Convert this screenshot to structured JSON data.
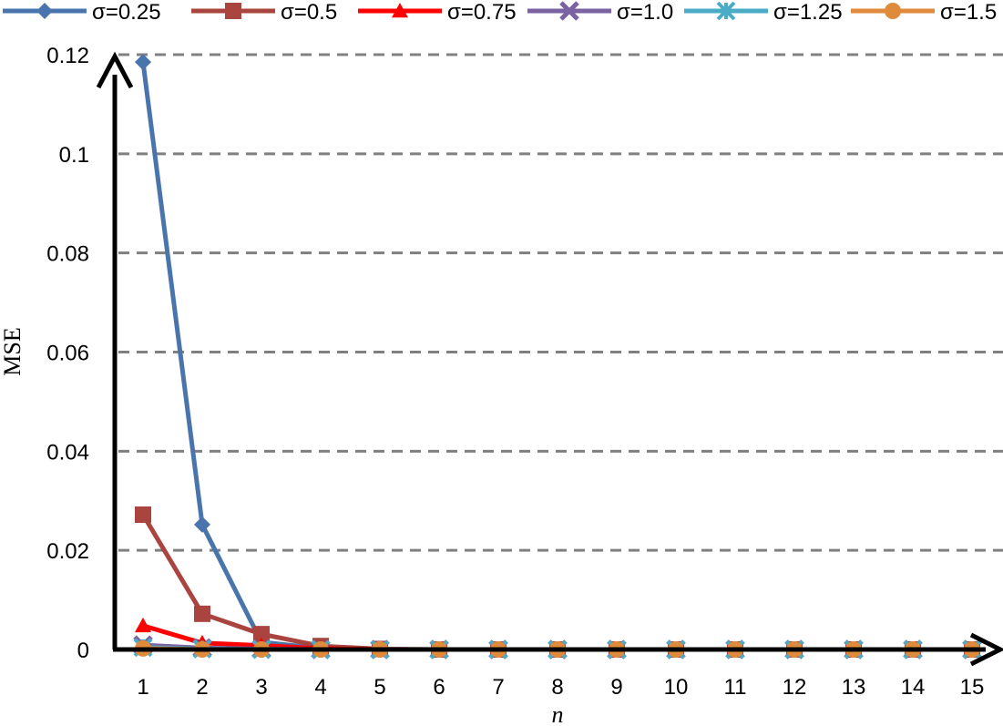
{
  "chart_data": {
    "type": "line",
    "xlabel": "n",
    "ylabel": "MSE",
    "x": [
      1,
      2,
      3,
      4,
      5,
      6,
      7,
      8,
      9,
      10,
      11,
      12,
      13,
      14,
      15
    ],
    "x_tick_labels": [
      "1",
      "2",
      "3",
      "4",
      "5",
      "6",
      "7",
      "8",
      "9",
      "10",
      "11",
      "12",
      "13",
      "14",
      "15"
    ],
    "y_ticks": [
      0,
      0.02,
      0.04,
      0.06,
      0.08,
      0.1,
      0.12
    ],
    "y_tick_labels": [
      "0",
      "0.02",
      "0.04",
      "0.06",
      "0.08",
      "0.1",
      "0.12"
    ],
    "ylim": [
      0,
      0.12
    ],
    "grid": "horizontal dashed",
    "legend_position": "top",
    "series": [
      {
        "name": "σ=0.25",
        "color": "#4a74ac",
        "marker": "diamond",
        "values": [
          0.1185,
          0.0252,
          0.0015,
          0.0002,
          0,
          0,
          0,
          0,
          0,
          0,
          0,
          0,
          0,
          0,
          0
        ]
      },
      {
        "name": "σ=0.5",
        "color": "#a9443f",
        "marker": "square",
        "values": [
          0.0272,
          0.0072,
          0.0031,
          0.0007,
          0.0001,
          0,
          0,
          0,
          0,
          0,
          0,
          0,
          0,
          0,
          0
        ]
      },
      {
        "name": "σ=0.75",
        "color": "#ff0000",
        "marker": "triangle",
        "values": [
          0.0048,
          0.0013,
          0.0008,
          0.0002,
          0,
          0,
          0,
          0,
          0,
          0,
          0,
          0,
          0,
          0,
          0
        ]
      },
      {
        "name": "σ=1.0",
        "color": "#7b62a3",
        "marker": "x",
        "values": [
          0.0009,
          0.0003,
          0.0001,
          0,
          0,
          0,
          0,
          0,
          0,
          0,
          0,
          0,
          0,
          0,
          0
        ]
      },
      {
        "name": "σ=1.25",
        "color": "#4bacc6",
        "marker": "star",
        "values": [
          0.0004,
          0.0001,
          0,
          0,
          0,
          0,
          0,
          0,
          0,
          0,
          0,
          0,
          0,
          0,
          0
        ]
      },
      {
        "name": "σ=1.5",
        "color": "#e08b3c",
        "marker": "circle",
        "values": [
          0.0002,
          0,
          0,
          0,
          0,
          0,
          0,
          0,
          0,
          0,
          0,
          0,
          0,
          0,
          0
        ]
      }
    ]
  }
}
